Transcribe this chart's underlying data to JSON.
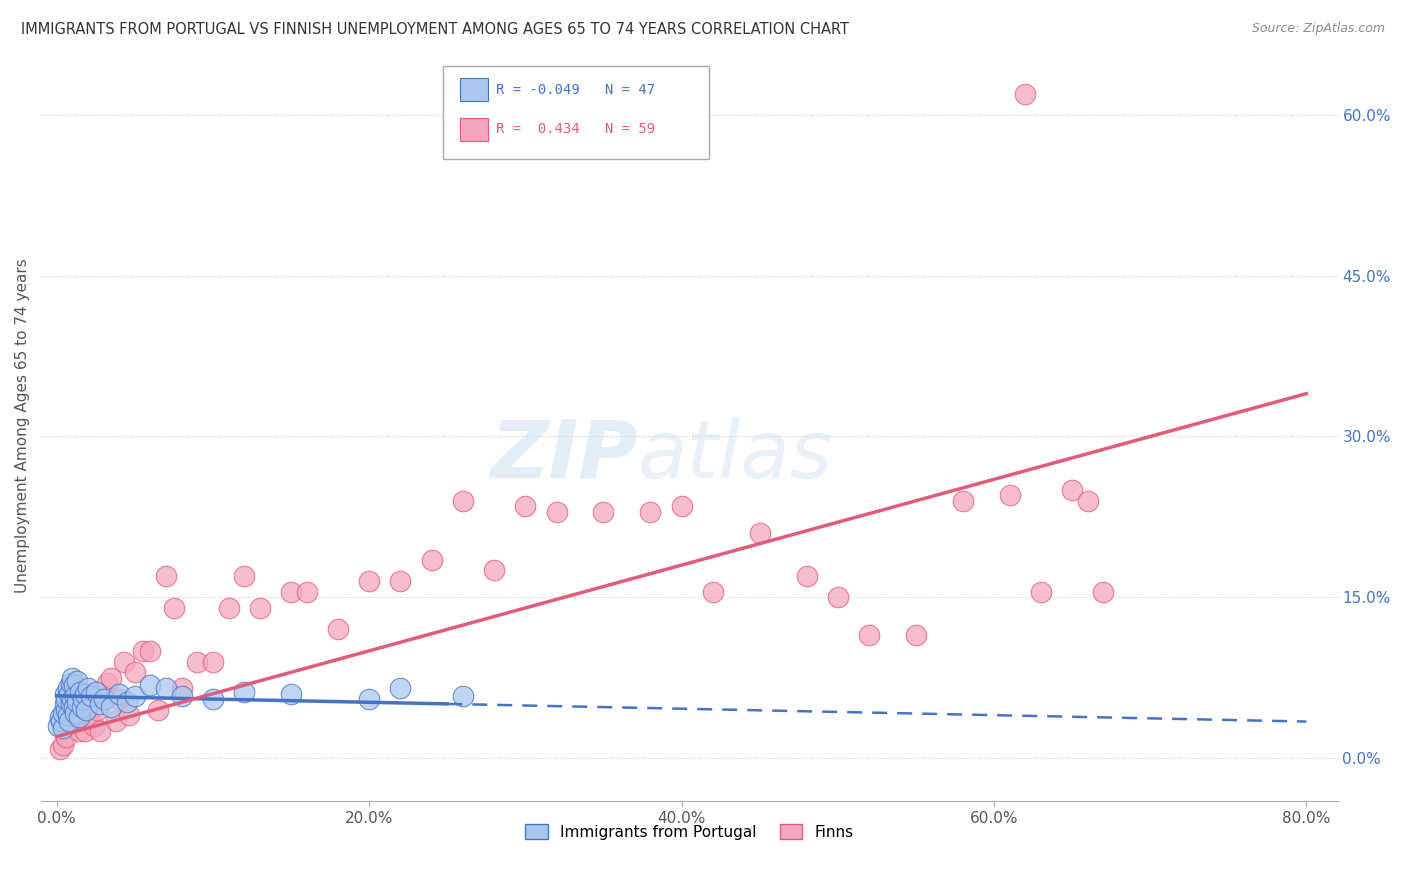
{
  "title": "IMMIGRANTS FROM PORTUGAL VS FINNISH UNEMPLOYMENT AMONG AGES 65 TO 74 YEARS CORRELATION CHART",
  "source": "Source: ZipAtlas.com",
  "ylabel": "Unemployment Among Ages 65 to 74 years",
  "xlabel_ticks": [
    "0.0%",
    "20.0%",
    "40.0%",
    "60.0%",
    "80.0%"
  ],
  "xlabel_vals": [
    0.0,
    0.2,
    0.4,
    0.6,
    0.8
  ],
  "ylabel_ticks_right": [
    "0.0%",
    "15.0%",
    "30.0%",
    "45.0%",
    "60.0%"
  ],
  "ylabel_vals_right": [
    0.0,
    0.15,
    0.3,
    0.45,
    0.6
  ],
  "xlim": [
    -0.01,
    0.82
  ],
  "ylim": [
    -0.04,
    0.66
  ],
  "blue_R": "-0.049",
  "blue_N": "47",
  "pink_R": "0.434",
  "pink_N": "59",
  "blue_color": "#aac8ef",
  "pink_color": "#f4a7bc",
  "blue_line_color": "#4472c4",
  "pink_line_color": "#e05c7a",
  "watermark_color": "#ddeeff",
  "blue_scatter_x": [
    0.001,
    0.002,
    0.003,
    0.004,
    0.004,
    0.005,
    0.005,
    0.006,
    0.006,
    0.007,
    0.007,
    0.008,
    0.008,
    0.009,
    0.009,
    0.01,
    0.01,
    0.011,
    0.011,
    0.012,
    0.012,
    0.013,
    0.013,
    0.014,
    0.015,
    0.016,
    0.017,
    0.018,
    0.019,
    0.02,
    0.022,
    0.025,
    0.028,
    0.03,
    0.035,
    0.04,
    0.045,
    0.05,
    0.06,
    0.07,
    0.08,
    0.1,
    0.12,
    0.15,
    0.2,
    0.22,
    0.26
  ],
  "blue_scatter_y": [
    0.03,
    0.038,
    0.035,
    0.028,
    0.042,
    0.05,
    0.06,
    0.045,
    0.055,
    0.04,
    0.065,
    0.035,
    0.06,
    0.05,
    0.07,
    0.055,
    0.075,
    0.048,
    0.068,
    0.042,
    0.058,
    0.052,
    0.072,
    0.038,
    0.062,
    0.048,
    0.055,
    0.06,
    0.045,
    0.065,
    0.058,
    0.062,
    0.05,
    0.055,
    0.048,
    0.06,
    0.052,
    0.058,
    0.068,
    0.065,
    0.058,
    0.055,
    0.062,
    0.06,
    0.055,
    0.065,
    0.058
  ],
  "pink_scatter_x": [
    0.002,
    0.004,
    0.006,
    0.008,
    0.01,
    0.012,
    0.014,
    0.016,
    0.018,
    0.02,
    0.022,
    0.024,
    0.026,
    0.028,
    0.03,
    0.032,
    0.035,
    0.038,
    0.04,
    0.043,
    0.046,
    0.05,
    0.055,
    0.06,
    0.065,
    0.07,
    0.075,
    0.08,
    0.09,
    0.1,
    0.11,
    0.12,
    0.13,
    0.15,
    0.16,
    0.18,
    0.2,
    0.22,
    0.24,
    0.26,
    0.28,
    0.3,
    0.32,
    0.35,
    0.38,
    0.4,
    0.42,
    0.45,
    0.48,
    0.5,
    0.52,
    0.55,
    0.58,
    0.61,
    0.63,
    0.65,
    0.66,
    0.67,
    0.62
  ],
  "pink_scatter_y": [
    0.008,
    0.012,
    0.02,
    0.04,
    0.05,
    0.035,
    0.025,
    0.045,
    0.025,
    0.04,
    0.06,
    0.03,
    0.045,
    0.025,
    0.06,
    0.07,
    0.075,
    0.035,
    0.055,
    0.09,
    0.04,
    0.08,
    0.1,
    0.1,
    0.045,
    0.17,
    0.14,
    0.065,
    0.09,
    0.09,
    0.14,
    0.17,
    0.14,
    0.155,
    0.155,
    0.12,
    0.165,
    0.165,
    0.185,
    0.24,
    0.175,
    0.235,
    0.23,
    0.23,
    0.23,
    0.235,
    0.155,
    0.21,
    0.17,
    0.15,
    0.115,
    0.115,
    0.24,
    0.245,
    0.155,
    0.25,
    0.24,
    0.155,
    0.62
  ]
}
